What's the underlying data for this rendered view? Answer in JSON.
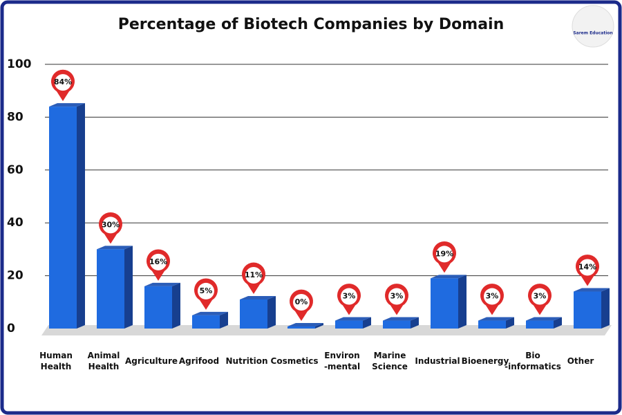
{
  "chart_data": {
    "type": "bar",
    "title": "Percentage of Biotech Companies by Domain",
    "categories": [
      "Human\nHealth",
      "Animal\nHealth",
      "Agriculture",
      "Agrifood",
      "Nutrition",
      "Cosmetics",
      "Environ\n-mental",
      "Marine\nScience",
      "Industrial",
      "Bioenergy",
      "Bio\n-informatics",
      "Other"
    ],
    "values": [
      84,
      30,
      16,
      5,
      11,
      0,
      3,
      3,
      19,
      3,
      3,
      14
    ],
    "value_labels": [
      "84%",
      "30%",
      "16%",
      "5%",
      "11%",
      "0%",
      "3%",
      "3%",
      "19%",
      "3%",
      "3%",
      "14%"
    ],
    "color": "#1f6be0",
    "ylim": [
      0,
      100
    ],
    "yticks": [
      0,
      20,
      40,
      60,
      80,
      100
    ],
    "grid": true
  },
  "brand": "Sarem Education"
}
